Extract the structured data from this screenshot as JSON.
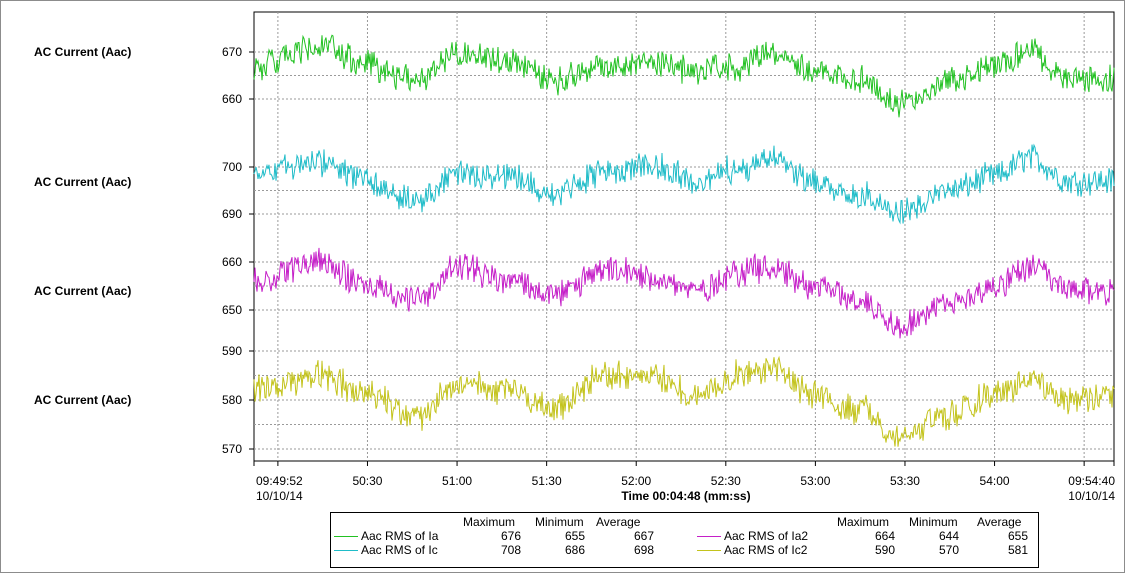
{
  "y_axis_label": "AC Current (Aac)",
  "x_axis": {
    "title": "Time 00:04:48 (mm:ss)",
    "start_label": "09:49:52",
    "start_date": "10/10/14",
    "end_label": "09:54:40",
    "end_date": "10/10/14"
  },
  "legend": {
    "headers": [
      "Maximum",
      "Minimum",
      "Average"
    ],
    "entries": [
      {
        "name": "Aac RMS of Ia",
        "color": "#22c122",
        "max": "676",
        "min": "655",
        "avg": "667"
      },
      {
        "name": "Aac RMS of Ic",
        "color": "#1fbcc8",
        "max": "708",
        "min": "686",
        "avg": "698"
      },
      {
        "name": "Aac RMS of Ia2",
        "color": "#c51fc8",
        "max": "664",
        "min": "644",
        "avg": "655"
      },
      {
        "name": "Aac RMS of Ic2",
        "color": "#c3c31c",
        "max": "590",
        "min": "570",
        "avg": "581"
      }
    ]
  },
  "chart_data": {
    "type": "line",
    "x_unit": "time (mm:ss)",
    "x_range": [
      "09:49:52",
      "09:54:40"
    ],
    "x_ticks": [
      "50:30",
      "51:00",
      "51:30",
      "52:00",
      "52:30",
      "53:00",
      "53:30",
      "54:00"
    ],
    "grid": true,
    "panels": [
      {
        "ylabel": "AC Current (Aac)",
        "yticks": [
          660,
          670
        ],
        "series": {
          "name": "Aac RMS of Ia",
          "color": "#22c122",
          "times": [
            "09:49:52",
            "09:50:15",
            "09:50:30",
            "09:50:47",
            "09:51:00",
            "09:51:18",
            "09:51:32",
            "09:51:50",
            "09:52:05",
            "09:52:20",
            "09:52:34",
            "09:52:45",
            "09:53:00",
            "09:53:15",
            "09:53:28",
            "09:53:45",
            "09:54:00",
            "09:54:12",
            "09:54:25",
            "09:54:40"
          ],
          "values": [
            667,
            671,
            667,
            664,
            670,
            668,
            664,
            667,
            668,
            666,
            667,
            670,
            666,
            664,
            659,
            664,
            667,
            670,
            664,
            664
          ]
        }
      },
      {
        "ylabel": "AC Current (Aac)",
        "yticks": [
          690,
          700
        ],
        "series": {
          "name": "Aac RMS of Ic",
          "color": "#1fbcc8",
          "times": [
            "09:49:52",
            "09:50:15",
            "09:50:30",
            "09:50:47",
            "09:51:00",
            "09:51:18",
            "09:51:32",
            "09:51:50",
            "09:52:05",
            "09:52:20",
            "09:52:34",
            "09:52:45",
            "09:53:00",
            "09:53:15",
            "09:53:28",
            "09:53:45",
            "09:54:00",
            "09:54:12",
            "09:54:25",
            "09:54:40"
          ],
          "values": [
            699,
            701,
            697,
            693,
            699,
            698,
            694,
            699,
            700,
            697,
            700,
            702,
            697,
            694,
            690,
            695,
            698,
            702,
            697,
            697
          ]
        }
      },
      {
        "ylabel": "AC Current (Aac)",
        "yticks": [
          650,
          660
        ],
        "series": {
          "name": "Aac RMS of Ia2",
          "color": "#c51fc8",
          "times": [
            "09:49:52",
            "09:50:15",
            "09:50:30",
            "09:50:47",
            "09:51:00",
            "09:51:18",
            "09:51:32",
            "09:51:50",
            "09:52:05",
            "09:52:20",
            "09:52:34",
            "09:52:45",
            "09:53:00",
            "09:53:15",
            "09:53:28",
            "09:53:45",
            "09:54:00",
            "09:54:12",
            "09:54:25",
            "09:54:40"
          ],
          "values": [
            656,
            660,
            655,
            652,
            659,
            656,
            653,
            658,
            657,
            654,
            658,
            659,
            655,
            652,
            647,
            651,
            655,
            659,
            654,
            654
          ]
        }
      },
      {
        "ylabel": "AC Current (Aac)",
        "yticks": [
          570,
          580,
          590
        ],
        "series": {
          "name": "Aac RMS of Ic2",
          "color": "#c3c31c",
          "times": [
            "09:49:52",
            "09:50:15",
            "09:50:30",
            "09:50:47",
            "09:51:00",
            "09:51:18",
            "09:51:32",
            "09:51:50",
            "09:52:05",
            "09:52:20",
            "09:52:34",
            "09:52:45",
            "09:53:00",
            "09:53:15",
            "09:53:28",
            "09:53:45",
            "09:54:00",
            "09:54:12",
            "09:54:25",
            "09:54:40"
          ],
          "values": [
            582,
            585,
            581,
            577,
            583,
            582,
            578,
            585,
            585,
            581,
            585,
            586,
            581,
            578,
            573,
            577,
            581,
            584,
            580,
            581
          ]
        }
      }
    ]
  }
}
